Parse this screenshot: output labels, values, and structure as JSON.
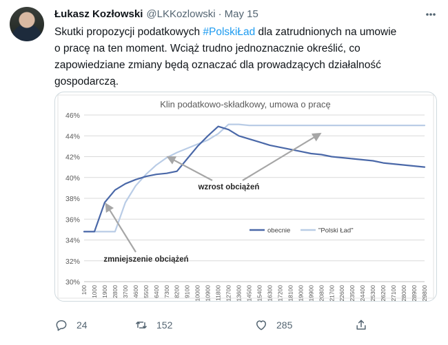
{
  "tweet": {
    "author_name": "Łukasz Kozłowski",
    "handle": "@LKKozlowski",
    "separator": "·",
    "date": "May 15",
    "text_lines": [
      [
        "Skutki propozycji podatkowych ",
        "#PolskiŁad",
        " dla zatrudnionych na umowie"
      ],
      [
        "o pracę na ten moment. Wciąż trudno jednoznacznie określić, co"
      ],
      [
        "zapowiedziane zmiany będą oznaczać dla prowadzących działalność"
      ],
      [
        "gospodarczą."
      ]
    ]
  },
  "actions": {
    "reply_count": "24",
    "retweet_count": "152",
    "like_count": "285"
  },
  "icons": [
    "more-icon",
    "reply-icon",
    "retweet-icon",
    "like-icon",
    "share-icon"
  ],
  "colors": {
    "accent": "#1d9bf0",
    "series_obecnie": "#4a68a8",
    "series_polski_lad": "#b9cce6",
    "annotation_arrow": "#a6a6a6"
  },
  "chart_data": {
    "type": "line",
    "title": "Klin podatkowo-składkowy, umowa o pracę",
    "xlabel": "",
    "ylabel": "",
    "ylim": [
      30,
      46
    ],
    "ytick_labels": [
      "30%",
      "32%",
      "34%",
      "36%",
      "38%",
      "40%",
      "42%",
      "44%",
      "46%"
    ],
    "grid": true,
    "legend": "bottom-right",
    "categories": [
      "100",
      "1000",
      "1900",
      "2800",
      "3700",
      "4600",
      "5500",
      "6400",
      "7300",
      "8200",
      "9100",
      "10000",
      "10900",
      "11800",
      "12700",
      "13600",
      "14500",
      "15400",
      "16300",
      "17200",
      "18100",
      "19000",
      "19900",
      "20800",
      "21700",
      "22600",
      "23500",
      "24400",
      "25300",
      "26200",
      "27100",
      "28000",
      "28900",
      "29800"
    ],
    "series": [
      {
        "name": "obecnie",
        "values": [
          34.8,
          34.8,
          37.6,
          38.8,
          39.4,
          39.8,
          40.1,
          40.3,
          40.4,
          40.6,
          41.8,
          43.0,
          44.0,
          44.9,
          44.6,
          44.0,
          43.7,
          43.4,
          43.1,
          42.9,
          42.7,
          42.5,
          42.3,
          42.2,
          42.0,
          41.9,
          41.8,
          41.7,
          41.6,
          41.4,
          41.3,
          41.2,
          41.1,
          41.0
        ]
      },
      {
        "name": "\"Polski Ład\"",
        "values": [
          34.8,
          34.8,
          34.8,
          34.8,
          37.6,
          39.2,
          40.3,
          41.2,
          41.9,
          42.4,
          42.8,
          43.2,
          43.6,
          44.2,
          45.1,
          45.1,
          45.0,
          45.0,
          45.0,
          45.0,
          45.0,
          45.0,
          45.0,
          45.0,
          45.0,
          45.0,
          45.0,
          45.0,
          45.0,
          45.0,
          45.0,
          45.0,
          45.0,
          45.0
        ]
      }
    ],
    "annotations": [
      {
        "text": "wzrost obciążeń",
        "targets": [
          [
            "7300",
            42.1
          ],
          [
            "20800",
            44.2
          ]
        ]
      },
      {
        "text": "zmniejszenie obciążeń",
        "targets": [
          [
            "1900",
            37.7
          ]
        ]
      }
    ]
  }
}
